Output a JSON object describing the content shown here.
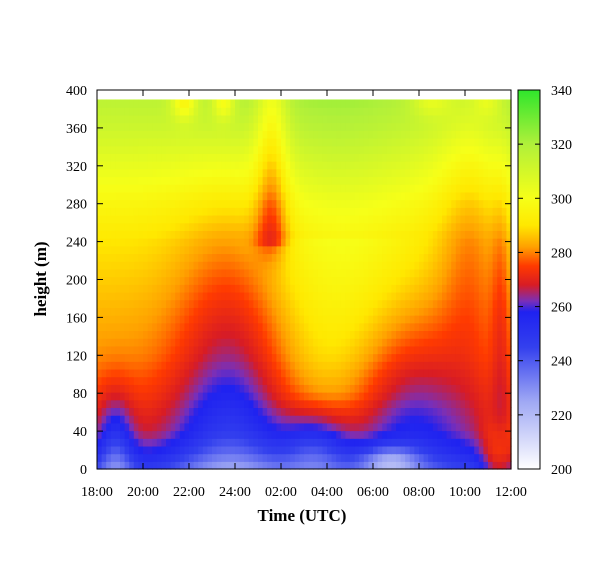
{
  "chart_data": {
    "type": "heatmap",
    "title": "",
    "xlabel": "Time (UTC)",
    "ylabel": "height (m)",
    "x_tick_labels": [
      "18:00",
      "20:00",
      "22:00",
      "24:00",
      "02:00",
      "04:00",
      "06:00",
      "08:00",
      "10:00",
      "12:00"
    ],
    "x_tick_hours": [
      0,
      2,
      4,
      6,
      8,
      10,
      12,
      14,
      16,
      18
    ],
    "xlim_hours": [
      0,
      18
    ],
    "y_ticks": [
      0,
      40,
      80,
      120,
      160,
      200,
      240,
      280,
      320,
      360,
      400
    ],
    "ylim": [
      0,
      400
    ],
    "data_top": 390,
    "colorbar": {
      "ticks": [
        200,
        220,
        240,
        260,
        280,
        300,
        320,
        340
      ],
      "range": [
        200,
        340
      ],
      "stops": [
        {
          "value": 200,
          "color": "#ffffff"
        },
        {
          "value": 225,
          "color": "#9fa8f4"
        },
        {
          "value": 245,
          "color": "#3340ee"
        },
        {
          "value": 258,
          "color": "#1f22f0"
        },
        {
          "value": 262,
          "color": "#7a2fb8"
        },
        {
          "value": 268,
          "color": "#d81c24"
        },
        {
          "value": 275,
          "color": "#ff3a00"
        },
        {
          "value": 282,
          "color": "#ffa000"
        },
        {
          "value": 290,
          "color": "#ffe800"
        },
        {
          "value": 300,
          "color": "#f6ff18"
        },
        {
          "value": 320,
          "color": "#b0f03a"
        },
        {
          "value": 340,
          "color": "#2fe62c"
        }
      ]
    },
    "grid": false,
    "legend": "colorbar-right"
  }
}
